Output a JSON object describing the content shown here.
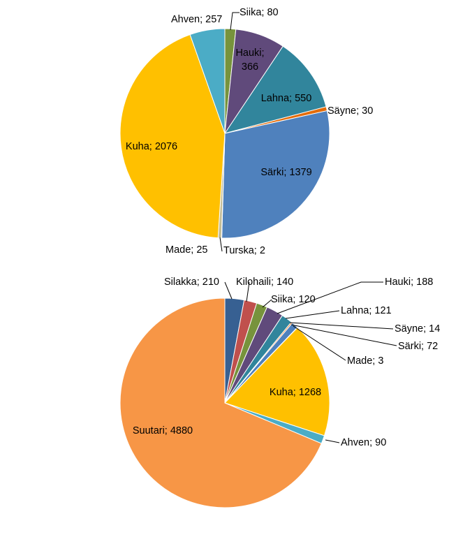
{
  "chart_data": [
    {
      "type": "pie",
      "title": "",
      "start": "top",
      "direction": "clockwise",
      "slices": [
        {
          "label": "Siika",
          "value": 80,
          "text": "Siika; 80",
          "color": "#77933C"
        },
        {
          "label": "Hauki",
          "value": 366,
          "text": "Hauki; 366",
          "color": "#604A7B"
        },
        {
          "label": "Lahna",
          "value": 550,
          "text": "Lahna; 550",
          "color": "#31859C"
        },
        {
          "label": "Säyne",
          "value": 30,
          "text": "Säyne; 30",
          "color": "#E46C0A"
        },
        {
          "label": "Särki",
          "value": 1379,
          "text": "Särki; 1379",
          "color": "#4F81BD"
        },
        {
          "label": "Turska",
          "value": 2,
          "text": "Turska; 2",
          "color": "#8EB4E3"
        },
        {
          "label": "Made",
          "value": 25,
          "text": "Made; 25",
          "color": "#C4BD97"
        },
        {
          "label": "Kuha",
          "value": 2076,
          "text": "Kuha; 2076",
          "color": "#FFC000"
        },
        {
          "label": "Ahven",
          "value": 257,
          "text": "Ahven; 257",
          "color": "#4BACC6"
        }
      ]
    },
    {
      "type": "pie",
      "title": "",
      "start": "top",
      "direction": "clockwise",
      "slices": [
        {
          "label": "Silakka",
          "value": 210,
          "text": "Silakka; 210",
          "color": "#376092"
        },
        {
          "label": "Kilohaili",
          "value": 140,
          "text": "Kilohaili; 140",
          "color": "#C0504D"
        },
        {
          "label": "Siika",
          "value": 120,
          "text": "Siika; 120",
          "color": "#77933C"
        },
        {
          "label": "Hauki",
          "value": 188,
          "text": "Hauki; 188",
          "color": "#604A7B"
        },
        {
          "label": "Lahna",
          "value": 121,
          "text": "Lahna; 121",
          "color": "#31859C"
        },
        {
          "label": "Säyne",
          "value": 14,
          "text": "Säyne; 14",
          "color": "#E46C0A"
        },
        {
          "label": "Särki",
          "value": 72,
          "text": "Särki; 72",
          "color": "#4F81BD"
        },
        {
          "label": "Made",
          "value": 3,
          "text": "Made; 3",
          "color": "#C4BD97"
        },
        {
          "label": "Kuha",
          "value": 1268,
          "text": "Kuha; 1268",
          "color": "#FFC000"
        },
        {
          "label": "Ahven",
          "value": 90,
          "text": "Ahven; 90",
          "color": "#4BACC6"
        },
        {
          "label": "Suutari",
          "value": 4880,
          "text": "Suutari; 4880",
          "color": "#F79646"
        }
      ]
    }
  ]
}
